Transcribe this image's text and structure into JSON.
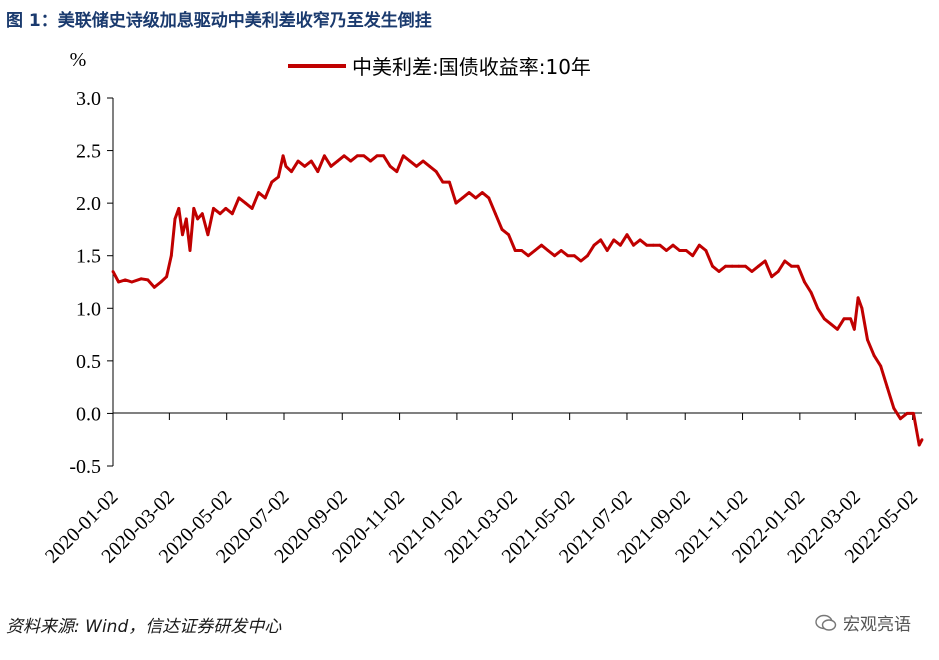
{
  "header": {
    "title": "图 1：美联储史诗级加息驱动中美利差收窄乃至发生倒挂"
  },
  "footer": {
    "source": "资料来源: Wind，信达证券研发中心",
    "watermark": "宏观亮语"
  },
  "colors": {
    "series": "#c00000",
    "title": "#1a3a6e",
    "axis": "#000000"
  },
  "chart_data": {
    "type": "line",
    "title": "",
    "ylabel": "%",
    "xlabel": "",
    "ylim": [
      -0.5,
      3.0
    ],
    "yticks": [
      "3.0",
      "2.5",
      "2.0",
      "1.5",
      "1.0",
      "0.5",
      "0.0",
      "-0.5"
    ],
    "xlim": [
      "2020-01-02",
      "2022-05-12"
    ],
    "xticks": [
      "2020-01-02",
      "2020-03-02",
      "2020-05-02",
      "2020-07-02",
      "2020-09-02",
      "2020-11-02",
      "2021-01-02",
      "2021-03-02",
      "2021-05-02",
      "2021-07-02",
      "2021-09-02",
      "2021-11-02",
      "2022-01-02",
      "2022-03-02",
      "2022-05-02"
    ],
    "legend": "top",
    "grid": false,
    "series": [
      {
        "name": "中美利差:国债收益率:10年",
        "x": [
          "2020-01-02",
          "2020-01-08",
          "2020-01-15",
          "2020-01-22",
          "2020-02-01",
          "2020-02-08",
          "2020-02-15",
          "2020-02-22",
          "2020-02-28",
          "2020-03-04",
          "2020-03-08",
          "2020-03-12",
          "2020-03-16",
          "2020-03-20",
          "2020-03-24",
          "2020-03-28",
          "2020-04-01",
          "2020-04-06",
          "2020-04-12",
          "2020-04-18",
          "2020-04-25",
          "2020-05-01",
          "2020-05-08",
          "2020-05-15",
          "2020-05-22",
          "2020-05-29",
          "2020-06-05",
          "2020-06-12",
          "2020-06-19",
          "2020-06-26",
          "2020-07-01",
          "2020-07-04",
          "2020-07-10",
          "2020-07-17",
          "2020-07-24",
          "2020-07-31",
          "2020-08-07",
          "2020-08-14",
          "2020-08-21",
          "2020-08-28",
          "2020-09-04",
          "2020-09-11",
          "2020-09-18",
          "2020-09-25",
          "2020-10-02",
          "2020-10-09",
          "2020-10-16",
          "2020-10-23",
          "2020-10-30",
          "2020-11-06",
          "2020-11-13",
          "2020-11-20",
          "2020-11-27",
          "2020-12-04",
          "2020-12-11",
          "2020-12-18",
          "2020-12-25",
          "2021-01-01",
          "2021-01-08",
          "2021-01-15",
          "2021-01-22",
          "2021-01-29",
          "2021-02-05",
          "2021-02-12",
          "2021-02-19",
          "2021-02-26",
          "2021-03-05",
          "2021-03-12",
          "2021-03-19",
          "2021-03-26",
          "2021-04-02",
          "2021-04-09",
          "2021-04-16",
          "2021-04-23",
          "2021-04-30",
          "2021-05-07",
          "2021-05-14",
          "2021-05-21",
          "2021-05-28",
          "2021-06-04",
          "2021-06-11",
          "2021-06-18",
          "2021-06-25",
          "2021-07-02",
          "2021-07-09",
          "2021-07-16",
          "2021-07-23",
          "2021-07-30",
          "2021-08-06",
          "2021-08-13",
          "2021-08-20",
          "2021-08-27",
          "2021-09-03",
          "2021-09-10",
          "2021-09-17",
          "2021-09-24",
          "2021-10-01",
          "2021-10-08",
          "2021-10-15",
          "2021-10-22",
          "2021-10-29",
          "2021-11-05",
          "2021-11-12",
          "2021-11-19",
          "2021-11-26",
          "2021-12-03",
          "2021-12-10",
          "2021-12-17",
          "2021-12-24",
          "2021-12-31",
          "2022-01-07",
          "2022-01-14",
          "2022-01-21",
          "2022-01-28",
          "2022-02-04",
          "2022-02-11",
          "2022-02-18",
          "2022-02-25",
          "2022-03-01",
          "2022-03-05",
          "2022-03-09",
          "2022-03-15",
          "2022-03-22",
          "2022-03-29",
          "2022-04-05",
          "2022-04-12",
          "2022-04-19",
          "2022-04-26",
          "2022-05-03",
          "2022-05-09",
          "2022-05-12"
        ],
        "values": [
          1.35,
          1.25,
          1.27,
          1.25,
          1.28,
          1.27,
          1.2,
          1.25,
          1.3,
          1.5,
          1.85,
          1.95,
          1.7,
          1.85,
          1.55,
          1.95,
          1.85,
          1.9,
          1.7,
          1.95,
          1.9,
          1.95,
          1.9,
          2.05,
          2.0,
          1.95,
          2.1,
          2.05,
          2.2,
          2.25,
          2.45,
          2.35,
          2.3,
          2.4,
          2.35,
          2.4,
          2.3,
          2.45,
          2.35,
          2.4,
          2.45,
          2.4,
          2.45,
          2.45,
          2.4,
          2.45,
          2.45,
          2.35,
          2.3,
          2.45,
          2.4,
          2.35,
          2.4,
          2.35,
          2.3,
          2.2,
          2.2,
          2.0,
          2.05,
          2.1,
          2.05,
          2.1,
          2.05,
          1.9,
          1.75,
          1.7,
          1.55,
          1.55,
          1.5,
          1.55,
          1.6,
          1.55,
          1.5,
          1.55,
          1.5,
          1.5,
          1.45,
          1.5,
          1.6,
          1.65,
          1.55,
          1.65,
          1.6,
          1.7,
          1.6,
          1.65,
          1.6,
          1.6,
          1.6,
          1.55,
          1.6,
          1.55,
          1.55,
          1.5,
          1.6,
          1.55,
          1.4,
          1.35,
          1.4,
          1.4,
          1.4,
          1.4,
          1.35,
          1.4,
          1.45,
          1.3,
          1.35,
          1.45,
          1.4,
          1.4,
          1.25,
          1.15,
          1.0,
          0.9,
          0.85,
          0.8,
          0.9,
          0.9,
          0.8,
          1.1,
          1.0,
          0.7,
          0.55,
          0.45,
          0.25,
          0.05,
          -0.05,
          0.0,
          0.0,
          -0.3,
          -0.25
        ]
      }
    ]
  }
}
